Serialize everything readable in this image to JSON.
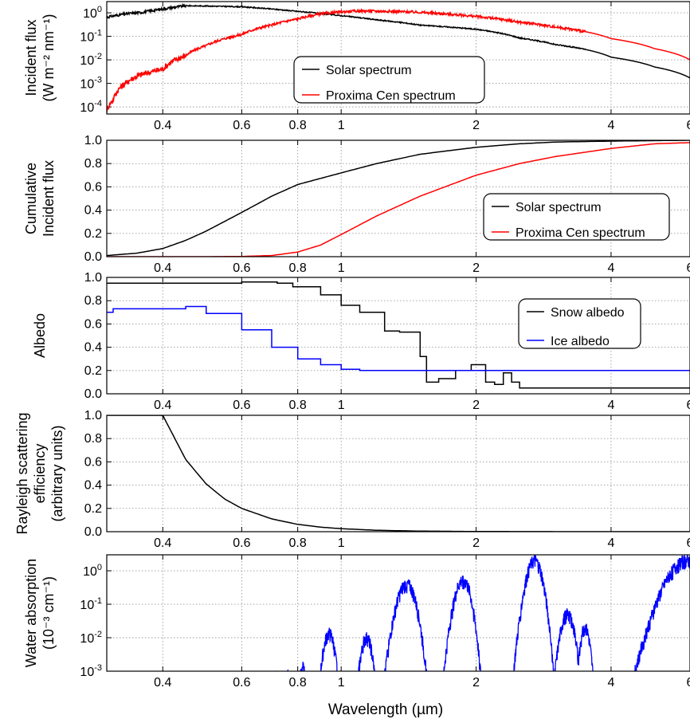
{
  "figure": {
    "xlabel": "Wavelength (µm)",
    "x_ticks": [
      0.4,
      0.6,
      0.8,
      1,
      2,
      4,
      6
    ],
    "x_tick_labels": [
      "0.4",
      "0.6",
      "0.8",
      "1",
      "2",
      "4",
      "6"
    ],
    "xlim": [
      0.3,
      6.0
    ],
    "x_scale": "log"
  },
  "chart_data": [
    {
      "type": "line",
      "ylabel_lines": [
        "Incident flux",
        "(W m⁻² nm⁻¹)"
      ],
      "y_scale": "log",
      "ylim": [
        5e-05,
        3
      ],
      "y_ticks": [
        0.0001,
        0.001,
        0.01,
        0.1,
        1
      ],
      "y_tick_labels": [
        [
          "10",
          "-4"
        ],
        [
          "10",
          "-3"
        ],
        [
          "10",
          "-2"
        ],
        [
          "10",
          "-1"
        ],
        [
          "10",
          "0"
        ]
      ],
      "grid": true,
      "legend": "center",
      "series": [
        {
          "name": "Solar spectrum",
          "color": "#000000",
          "noise": 0.05,
          "x": [
            0.3,
            0.33,
            0.36,
            0.4,
            0.45,
            0.5,
            0.6,
            0.7,
            0.8,
            1.0,
            1.2,
            1.5,
            2.0,
            2.5,
            3.0,
            4.0,
            5.0,
            6.0
          ],
          "y": [
            0.65,
            0.9,
            1.05,
            1.45,
            2.0,
            1.95,
            1.8,
            1.45,
            1.15,
            0.75,
            0.5,
            0.3,
            0.2,
            0.085,
            0.045,
            0.013,
            0.005,
            0.0017
          ]
        },
        {
          "name": "Proxima Cen spectrum",
          "color": "#ff0000",
          "noise": 0.12,
          "x": [
            0.3,
            0.31,
            0.33,
            0.35,
            0.4,
            0.45,
            0.5,
            0.55,
            0.6,
            0.7,
            0.8,
            0.9,
            1.0,
            1.1,
            1.3,
            1.5,
            2.0,
            2.5,
            3.0,
            4.0,
            5.0,
            6.0
          ],
          "y": [
            7e-05,
            0.0002,
            0.001,
            0.002,
            0.004,
            0.015,
            0.04,
            0.08,
            0.12,
            0.3,
            0.55,
            0.9,
            1.1,
            1.2,
            1.15,
            1.05,
            0.7,
            0.4,
            0.25,
            0.08,
            0.03,
            0.01
          ]
        }
      ]
    },
    {
      "type": "line",
      "ylabel_lines": [
        "Cumulative",
        "Incident flux"
      ],
      "y_scale": "linear",
      "ylim": [
        0,
        1
      ],
      "y_ticks": [
        0,
        0.2,
        0.4,
        0.6,
        0.8,
        1.0
      ],
      "y_tick_labels": [
        "0.0",
        "0.2",
        "0.4",
        "0.6",
        "0.8",
        "1.0"
      ],
      "grid": true,
      "legend": "center-right",
      "series": [
        {
          "name": "Solar spectrum",
          "color": "#000000",
          "x": [
            0.3,
            0.35,
            0.4,
            0.45,
            0.5,
            0.6,
            0.7,
            0.8,
            1.0,
            1.2,
            1.5,
            2.0,
            2.5,
            3.0,
            4.0,
            5.0,
            6.0
          ],
          "y": [
            0.01,
            0.03,
            0.07,
            0.14,
            0.22,
            0.38,
            0.52,
            0.62,
            0.72,
            0.8,
            0.88,
            0.94,
            0.97,
            0.985,
            0.993,
            0.997,
            1.0
          ]
        },
        {
          "name": "Proxima Cen spectrum",
          "color": "#ff0000",
          "x": [
            0.3,
            0.5,
            0.6,
            0.7,
            0.8,
            0.9,
            1.0,
            1.2,
            1.5,
            2.0,
            2.5,
            3.0,
            4.0,
            5.0,
            6.0
          ],
          "y": [
            0.0,
            0.0,
            0.002,
            0.01,
            0.04,
            0.1,
            0.19,
            0.35,
            0.52,
            0.7,
            0.8,
            0.86,
            0.93,
            0.97,
            0.98
          ]
        }
      ]
    },
    {
      "type": "line",
      "ylabel_lines": [
        "Albedo"
      ],
      "y_scale": "linear",
      "ylim": [
        0,
        1
      ],
      "y_ticks": [
        0,
        0.2,
        0.4,
        0.6,
        0.8,
        1.0
      ],
      "y_tick_labels": [
        "0.0",
        "0.2",
        "0.4",
        "0.6",
        "0.8",
        "1.0"
      ],
      "grid": true,
      "legend": "upper-right",
      "series": [
        {
          "name": "Snow albedo",
          "color": "#000000",
          "step": true,
          "x": [
            0.3,
            0.6,
            0.72,
            0.78,
            0.9,
            1.0,
            1.1,
            1.25,
            1.35,
            1.5,
            1.55,
            1.65,
            1.8,
            1.95,
            2.1,
            2.2,
            2.3,
            2.4,
            2.5,
            6.0
          ],
          "y": [
            0.95,
            0.96,
            0.95,
            0.92,
            0.85,
            0.76,
            0.7,
            0.54,
            0.53,
            0.32,
            0.1,
            0.13,
            0.2,
            0.25,
            0.1,
            0.08,
            0.18,
            0.1,
            0.05,
            0.05
          ]
        },
        {
          "name": "Ice albedo",
          "color": "#0000ff",
          "step": true,
          "x": [
            0.3,
            0.31,
            0.4,
            0.45,
            0.5,
            0.6,
            0.7,
            0.8,
            0.9,
            1.0,
            1.1,
            6.0
          ],
          "y": [
            0.7,
            0.73,
            0.73,
            0.75,
            0.69,
            0.55,
            0.4,
            0.3,
            0.25,
            0.21,
            0.2,
            0.2
          ]
        }
      ]
    },
    {
      "type": "line",
      "ylabel_lines": [
        "Rayleigh scattering",
        "efficiency",
        "(arbitrary units)"
      ],
      "y_scale": "linear",
      "ylim": [
        0,
        1
      ],
      "y_ticks": [
        0,
        0.2,
        0.4,
        0.6,
        0.8,
        1.0
      ],
      "y_tick_labels": [
        "0.0",
        "0.2",
        "0.4",
        "0.6",
        "0.8",
        "1.0"
      ],
      "grid": true,
      "series": [
        {
          "name": "",
          "color": "#000000",
          "x": [
            0.4,
            0.45,
            0.5,
            0.55,
            0.6,
            0.7,
            0.8,
            0.9,
            1.0,
            1.2,
            1.5,
            2.0,
            3.0,
            4.0,
            6.0
          ],
          "y": [
            1.0,
            0.62,
            0.41,
            0.28,
            0.2,
            0.11,
            0.063,
            0.039,
            0.026,
            0.012,
            0.005,
            0.0016,
            0.0003,
            0.0001,
            0.0
          ]
        }
      ]
    },
    {
      "type": "line",
      "ylabel_lines": [
        "Water absorption",
        "(10⁻³ cm⁻¹)"
      ],
      "y_scale": "log",
      "ylim": [
        0.001,
        3
      ],
      "y_ticks": [
        0.001,
        0.01,
        0.1,
        1
      ],
      "y_tick_labels": [
        [
          "10",
          "-3"
        ],
        [
          "10",
          "-2"
        ],
        [
          "10",
          "-1"
        ],
        [
          "10",
          "0"
        ]
      ],
      "grid": true,
      "series": [
        {
          "name": "",
          "color": "#0000ff",
          "bands": [
            {
              "center": 0.72,
              "width": 0.008,
              "peak": 0.0013
            },
            {
              "center": 0.76,
              "width": 0.006,
              "peak": 0.0012
            },
            {
              "center": 0.82,
              "width": 0.012,
              "peak": 0.002
            },
            {
              "center": 0.94,
              "width": 0.025,
              "peak": 0.02
            },
            {
              "center": 1.14,
              "width": 0.03,
              "peak": 0.015
            },
            {
              "center": 1.4,
              "width": 0.06,
              "peak": 0.6
            },
            {
              "center": 1.87,
              "width": 0.07,
              "peak": 0.8
            },
            {
              "center": 2.7,
              "width": 0.1,
              "peak": 3.0
            },
            {
              "center": 3.2,
              "width": 0.1,
              "peak": 0.08
            },
            {
              "center": 3.5,
              "width": 0.08,
              "peak": 0.03
            },
            {
              "center": 5.9,
              "width": 0.5,
              "peak": 3.0
            }
          ]
        }
      ]
    }
  ]
}
